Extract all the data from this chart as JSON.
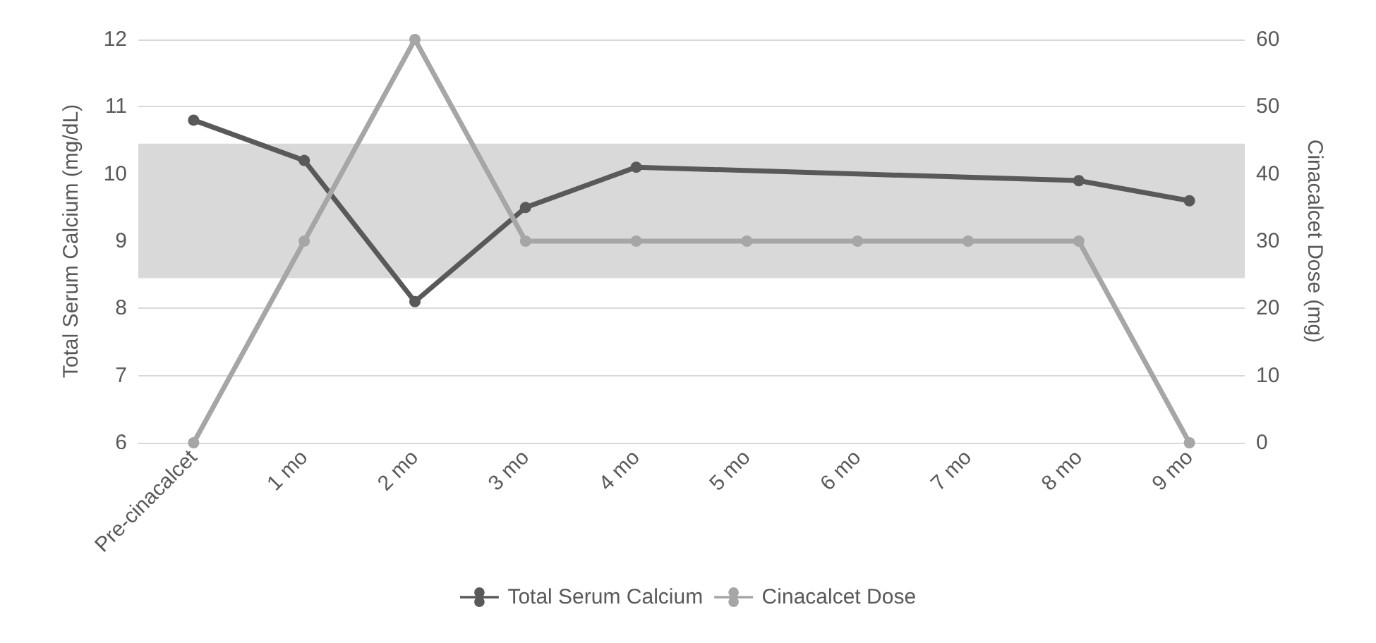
{
  "chart_data": {
    "type": "line",
    "ylabel": "Total Serum Calcium (mg/dL)",
    "y2label": "Cinacalcet Dose (mg)",
    "categories": [
      "Pre-cinacalcet",
      "1 mo",
      "2 mo",
      "3 mo",
      "4 mo",
      "5 mo",
      "6 mo",
      "7 mo",
      "8 mo",
      "9 mo"
    ],
    "series": [
      {
        "name": "Total Serum Calcium",
        "color": "#595959",
        "values": [
          10.8,
          10.2,
          8.1,
          9.5,
          10.1,
          null,
          null,
          null,
          9.9,
          9.6
        ]
      },
      {
        "name": "Cinacalcet Dose",
        "color": "#a6a6a6",
        "axis": "y2",
        "values": [
          0,
          30,
          60,
          30,
          30,
          30,
          30,
          30,
          30,
          0
        ]
      }
    ],
    "ylim": [
      6,
      12
    ],
    "yticks": [
      6,
      7,
      8,
      9,
      10,
      11,
      12
    ],
    "y2lim": [
      0,
      60
    ],
    "y2ticks": [
      0,
      10,
      20,
      30,
      40,
      50,
      60
    ],
    "bands": [
      {
        "axis": "y",
        "from": 8.45,
        "to": 10.45,
        "color": "#d9d9d9"
      }
    ],
    "grid": "y",
    "legend": "bottom",
    "marker": "circle",
    "line_style": "solid"
  }
}
